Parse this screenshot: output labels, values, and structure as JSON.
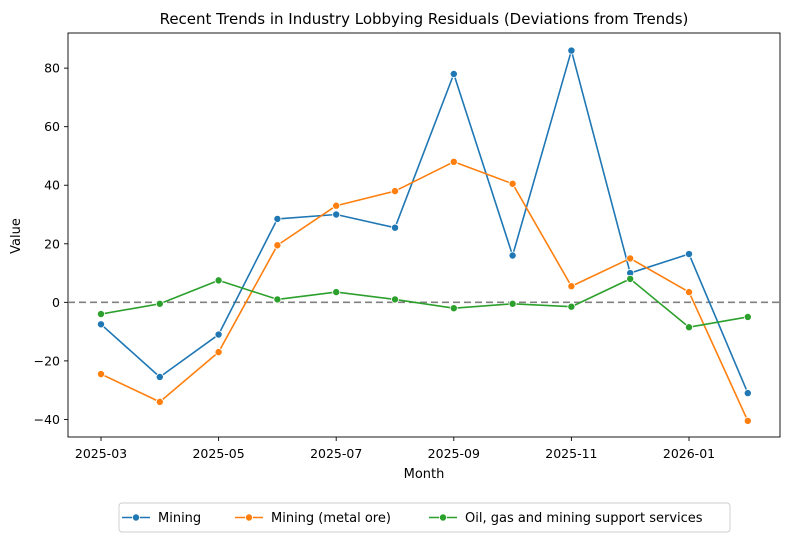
{
  "chart_data": {
    "type": "line",
    "title": "Recent Trends in Industry Lobbying Residuals (Deviations from Trends)",
    "xlabel": "Month",
    "ylabel": "Value",
    "x": [
      "2025-03",
      "2025-04",
      "2025-05",
      "2025-06",
      "2025-07",
      "2025-08",
      "2025-09",
      "2025-10",
      "2025-11",
      "2025-12",
      "2026-01",
      "2026-02"
    ],
    "x_tick_labels": [
      "2025-03",
      "2025-05",
      "2025-07",
      "2025-09",
      "2025-11",
      "2026-01"
    ],
    "y_ticks": [
      -40,
      -20,
      0,
      20,
      40,
      60,
      80
    ],
    "ylim": [
      -46,
      92
    ],
    "reference_line": 0,
    "grid": false,
    "legend_position": "bottom-center",
    "series": [
      {
        "name": "Mining",
        "color": "#1f77b4",
        "values": [
          -7.5,
          -25.5,
          -11,
          28.5,
          30,
          25.5,
          78,
          16,
          86,
          10,
          16.5,
          -31
        ]
      },
      {
        "name": "Mining (metal ore)",
        "color": "#ff7f0e",
        "values": [
          -24.5,
          -34,
          -17,
          19.5,
          33,
          38,
          48,
          40.5,
          5.5,
          15,
          3.5,
          -40.5
        ]
      },
      {
        "name": "Oil, gas and mining support services",
        "color": "#2ca02c",
        "values": [
          -4,
          -0.5,
          7.5,
          1,
          3.5,
          1,
          -2,
          -0.5,
          -1.5,
          8,
          -8.5,
          -5
        ]
      }
    ]
  }
}
